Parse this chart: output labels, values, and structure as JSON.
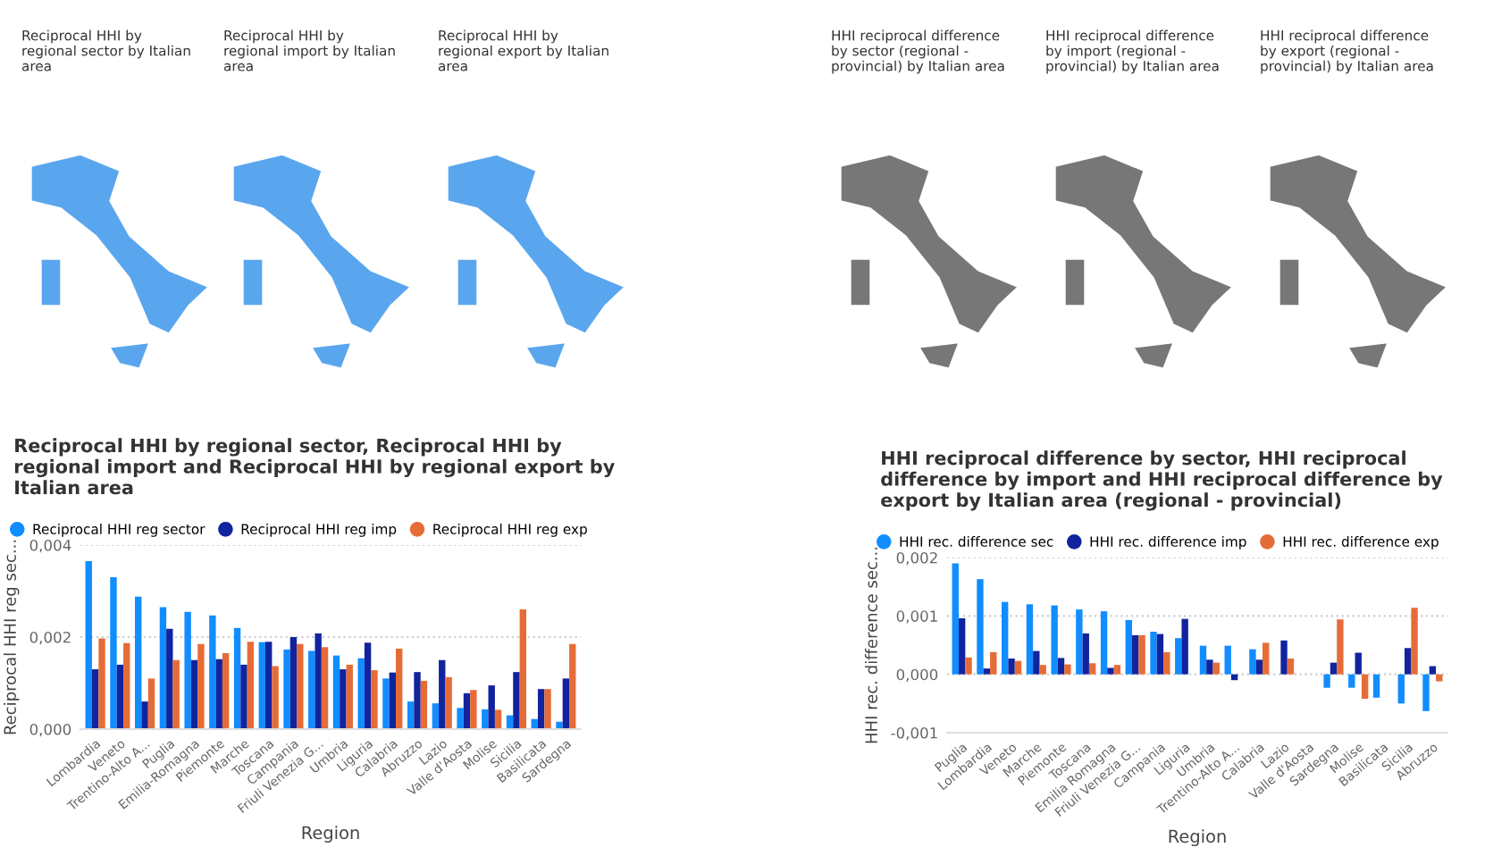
{
  "chart_data": [
    {
      "type": "other",
      "title": "Reciprocal HHI by regional sector by Italian area"
    },
    {
      "type": "other",
      "title": "Reciprocal HHI by regional import by Italian area"
    },
    {
      "type": "other",
      "title": "Reciprocal HHI by regional export by Italian area"
    },
    {
      "type": "other",
      "title": "HHI reciprocal difference by sector (regional - provincial) by Italian area"
    },
    {
      "type": "other",
      "title": "HHI reciprocal difference by import (regional - provincial) by Italian area"
    },
    {
      "type": "other",
      "title": "HHI reciprocal difference by export (regional - provincial) by Italian area"
    },
    {
      "type": "bar",
      "title": "Reciprocal HHI by regional sector, Reciprocal HHI by regional import and Reciprocal HHI by regional export by Italian area",
      "xlabel": "Region",
      "ylabel": "Reciprocal HHI reg sec...",
      "categories": [
        "Lombardia",
        "Veneto",
        "Trentino-Alto A...",
        "Puglia",
        "Emilia-Romagna",
        "Piemonte",
        "Marche",
        "Toscana",
        "Campania",
        "Friuli Venezia G...",
        "Umbria",
        "Liguria",
        "Calabria",
        "Abruzzo",
        "Lazio",
        "Valle d'Aosta",
        "Molise",
        "Sicilia",
        "Basilicata",
        "Sardegna"
      ],
      "series": [
        {
          "name": "Reciprocal HHI reg sector",
          "color": "#118dff",
          "values": [
            0.00365,
            0.0033,
            0.00288,
            0.00265,
            0.00255,
            0.00247,
            0.0022,
            0.00189,
            0.00173,
            0.0017,
            0.0016,
            0.00154,
            0.0011,
            0.0006,
            0.00056,
            0.00046,
            0.00043,
            0.0003,
            0.00022,
            0.00016
          ]
        },
        {
          "name": "Reciprocal HHI reg imp",
          "color": "#12239e",
          "values": [
            0.0013,
            0.0014,
            0.0006,
            0.00218,
            0.0015,
            0.00152,
            0.0014,
            0.0019,
            0.002,
            0.00208,
            0.0013,
            0.00188,
            0.00123,
            0.00124,
            0.0015,
            0.00078,
            0.00095,
            0.00124,
            0.00087,
            0.0011
          ]
        },
        {
          "name": "Reciprocal HHI reg exp",
          "color": "#e66c37",
          "values": [
            0.00197,
            0.00187,
            0.0011,
            0.0015,
            0.00185,
            0.00165,
            0.0019,
            0.00137,
            0.00185,
            0.00178,
            0.0014,
            0.00128,
            0.00175,
            0.00105,
            0.00113,
            0.00085,
            0.00042,
            0.0026,
            0.00087,
            0.00185
          ]
        }
      ],
      "ylim": [
        0,
        0.004
      ],
      "yticks": [
        {
          "value": 0,
          "label": "0,000"
        },
        {
          "value": 0.002,
          "label": "0,002"
        },
        {
          "value": 0.004,
          "label": "0,004"
        }
      ],
      "grid": "y",
      "legend": "top left"
    },
    {
      "type": "bar",
      "title": "HHI reciprocal difference by sector, HHI reciprocal difference by import and HHI reciprocal difference by export by Italian area (regional - provincial)",
      "xlabel": "Region",
      "ylabel": "HHI rec. difference sec...",
      "categories": [
        "Puglia",
        "Lombardia",
        "Veneto",
        "Marche",
        "Piemonte",
        "Toscana",
        "Emilia Romagna",
        "Friuli Venezia G...",
        "Campania",
        "Liguria",
        "Umbria",
        "Trentino-Alto A...",
        "Calabria",
        "Lazio",
        "Valle d'Aosta",
        "Sardegna",
        "Molise",
        "Basilicata",
        "Sicilia",
        "Abruzzo"
      ],
      "series": [
        {
          "name": "HHI rec. difference sec",
          "color": "#118dff",
          "values": [
            0.0019,
            0.00163,
            0.00124,
            0.0012,
            0.00118,
            0.00111,
            0.00108,
            0.00093,
            0.00073,
            0.00062,
            0.00049,
            0.00049,
            0.00043,
            0.0,
            0.0,
            -0.00023,
            -0.00023,
            -0.0004,
            -0.0005,
            -0.00063
          ]
        },
        {
          "name": "HHI rec. difference imp",
          "color": "#12239e",
          "values": [
            0.00096,
            0.0001,
            0.00027,
            0.0004,
            0.00028,
            0.0007,
            0.00011,
            0.00067,
            0.00069,
            0.00095,
            0.00025,
            -0.0001,
            0.00025,
            0.00058,
            0.0,
            0.0002,
            0.00037,
            0.0,
            0.00045,
            0.00014
          ]
        },
        {
          "name": "HHI rec. difference exp",
          "color": "#e66c37",
          "values": [
            0.00029,
            0.00038,
            0.00023,
            0.00016,
            0.00017,
            0.00019,
            0.00016,
            0.00067,
            0.00038,
            0.0,
            0.0002,
            0.0,
            0.00054,
            0.00027,
            0.0,
            0.00094,
            -0.00042,
            0.0,
            0.00114,
            -0.00012
          ]
        }
      ],
      "ylim": [
        -0.001,
        0.002
      ],
      "yticks": [
        {
          "value": -0.001,
          "label": "-0,001"
        },
        {
          "value": 0,
          "label": "0,000"
        },
        {
          "value": 0.001,
          "label": "0,001"
        },
        {
          "value": 0.002,
          "label": "0,002"
        }
      ],
      "grid": "y",
      "legend": "top left"
    }
  ]
}
